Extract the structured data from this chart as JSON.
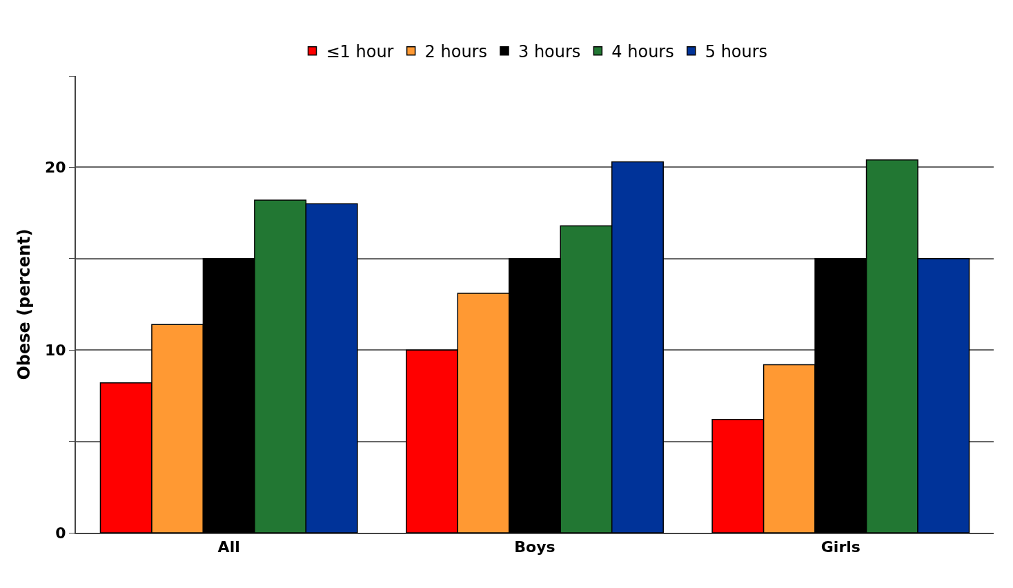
{
  "chart_data": {
    "type": "bar",
    "ylabel": "Obese (percent)",
    "categories": [
      "All",
      "Boys",
      "Girls"
    ],
    "series": [
      {
        "name": "≤1 hour",
        "color": "#ff0000",
        "values": [
          8.2,
          10,
          6.2
        ]
      },
      {
        "name": "2 hours",
        "color": "#ff9933",
        "values": [
          11.4,
          13.1,
          9.2
        ]
      },
      {
        "name": "3 hours",
        "color": "#000000",
        "values": [
          15,
          15,
          15
        ]
      },
      {
        "name": "4 hours",
        "color": "#227733",
        "values": [
          18.2,
          16.8,
          20.4
        ]
      },
      {
        "name": "5 hours",
        "color": "#003399",
        "values": [
          18,
          20.3,
          15
        ]
      }
    ],
    "ylim": [
      0,
      25
    ],
    "yticks": [
      0,
      {
        "value": 5,
        "label": null
      },
      10,
      {
        "value": 15,
        "label": null
      },
      20,
      {
        "value": 25,
        "label": null
      }
    ],
    "grid": "y",
    "legend": "top"
  }
}
